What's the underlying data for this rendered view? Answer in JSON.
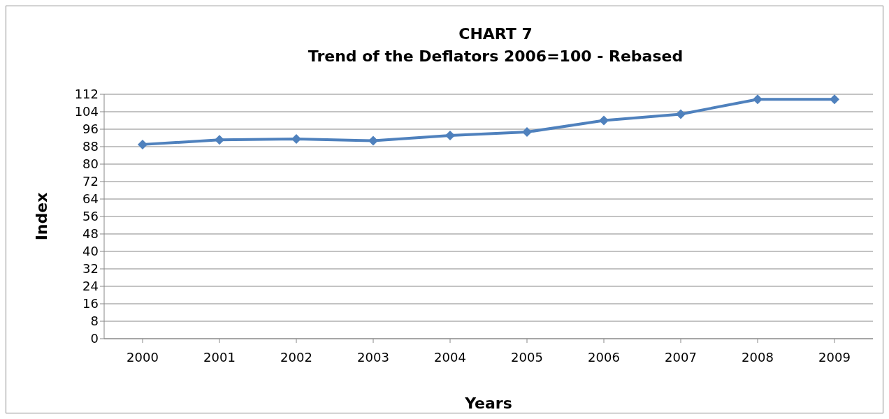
{
  "chart_data": {
    "type": "line",
    "title": "CHART 7",
    "subtitle": "Trend of the Deflators 2006=100 - Rebased",
    "xlabel": "Years",
    "ylabel": "Index",
    "categories": [
      "2000",
      "2001",
      "2002",
      "2003",
      "2004",
      "2005",
      "2006",
      "2007",
      "2008",
      "2009"
    ],
    "series": [
      {
        "color": "#4f81bd",
        "values": [
          89,
          91.1,
          91.5,
          90.7,
          93.1,
          94.7,
          100,
          102.9,
          109.7,
          109.7
        ]
      }
    ],
    "ylim": [
      0,
      112
    ],
    "yticks": [
      0,
      8,
      16,
      24,
      32,
      40,
      48,
      56,
      64,
      72,
      80,
      88,
      96,
      104,
      112
    ],
    "grid": "y",
    "marker": "diamond",
    "line_style": "solid"
  }
}
